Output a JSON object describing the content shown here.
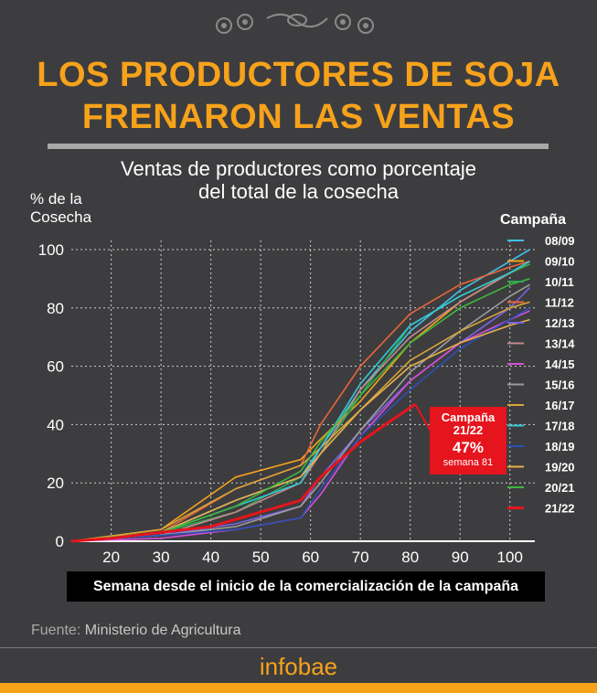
{
  "header": {
    "title_line1": "LOS PRODUCTORES DE SOJA",
    "title_line2": "FRENARON LAS VENTAS",
    "subtitle_line1": "Ventas de productores como porcentaje",
    "subtitle_line2": "del total de la cosecha"
  },
  "callout": {
    "line1": "Campaña",
    "line2": "21/22",
    "value": "47%",
    "week": "semana 81"
  },
  "source": {
    "label": "Fuente:",
    "text": "Ministerio de Agricultura"
  },
  "brand": "infobae",
  "colors": {
    "accent": "#f7a21b",
    "background": "#3d3d3f",
    "highlight": "#e5141d"
  },
  "chart_data": {
    "type": "line",
    "ylabel_line1": "% de la",
    "ylabel_line2": "Cosecha",
    "xlabel": "Semana desde el inicio de la comercialización de la campaña",
    "legend_title": "Campaña",
    "legend_position": "right",
    "xlim": [
      12,
      105
    ],
    "ylim": [
      0,
      100
    ],
    "xticks": [
      20,
      30,
      40,
      50,
      60,
      70,
      80,
      90,
      100
    ],
    "yticks": [
      0,
      20,
      40,
      60,
      80,
      100
    ],
    "grid": true,
    "series": [
      {
        "name": "08/09",
        "color": "#3fc0e6",
        "x": [
          12,
          30,
          45,
          58,
          62,
          70,
          80,
          90,
          100,
          104
        ],
        "y": [
          0,
          3,
          14,
          22,
          32,
          52,
          72,
          86,
          96,
          100
        ]
      },
      {
        "name": "09/10",
        "color": "#f7a21b",
        "x": [
          12,
          30,
          45,
          58,
          62,
          70,
          80,
          90,
          100,
          104
        ],
        "y": [
          0,
          4,
          22,
          28,
          35,
          48,
          68,
          82,
          92,
          95
        ]
      },
      {
        "name": "10/11",
        "color": "#2fa84f",
        "x": [
          12,
          30,
          45,
          58,
          62,
          70,
          80,
          90,
          100,
          104
        ],
        "y": [
          0,
          3,
          10,
          22,
          30,
          50,
          74,
          84,
          92,
          95
        ]
      },
      {
        "name": "11/12",
        "color": "#e9653a",
        "x": [
          12,
          30,
          45,
          58,
          62,
          70,
          80,
          90,
          100,
          104
        ],
        "y": [
          0,
          3,
          18,
          26,
          40,
          60,
          78,
          88,
          94,
          96
        ]
      },
      {
        "name": "12/13",
        "color": "#7b63e8",
        "x": [
          12,
          30,
          45,
          58,
          62,
          70,
          80,
          90,
          100,
          104
        ],
        "y": [
          0,
          2,
          6,
          12,
          22,
          38,
          55,
          68,
          80,
          87
        ]
      },
      {
        "name": "13/14",
        "color": "#c48a8a",
        "x": [
          12,
          30,
          45,
          58,
          62,
          70,
          80,
          90,
          100,
          104
        ],
        "y": [
          0,
          2,
          10,
          20,
          30,
          52,
          70,
          82,
          92,
          96
        ]
      },
      {
        "name": "14/15",
        "color": "#d64fd6",
        "x": [
          12,
          30,
          45,
          58,
          62,
          70,
          80,
          90,
          100,
          104
        ],
        "y": [
          0,
          1,
          4,
          8,
          16,
          36,
          55,
          68,
          76,
          79
        ]
      },
      {
        "name": "15/16",
        "color": "#9c9c9c",
        "x": [
          12,
          30,
          45,
          58,
          62,
          70,
          80,
          90,
          100,
          104
        ],
        "y": [
          0,
          2,
          5,
          12,
          20,
          38,
          58,
          72,
          84,
          88
        ]
      },
      {
        "name": "16/17",
        "color": "#d9a53a",
        "x": [
          12,
          30,
          45,
          58,
          62,
          70,
          80,
          90,
          100,
          104
        ],
        "y": [
          0,
          4,
          18,
          26,
          32,
          45,
          62,
          72,
          80,
          82
        ]
      },
      {
        "name": "17/18",
        "color": "#33c7d6",
        "x": [
          12,
          30,
          45,
          58,
          62,
          70,
          80,
          90,
          100,
          104
        ],
        "y": [
          0,
          3,
          12,
          20,
          32,
          54,
          74,
          84,
          92,
          96
        ]
      },
      {
        "name": "18/19",
        "color": "#2d4fb8",
        "x": [
          12,
          30,
          45,
          58,
          62,
          70,
          80,
          90,
          100,
          104
        ],
        "y": [
          0,
          2,
          4,
          8,
          18,
          36,
          52,
          66,
          76,
          80
        ]
      },
      {
        "name": "19/20",
        "color": "#e8b04a",
        "x": [
          12,
          30,
          45,
          58,
          62,
          70,
          80,
          90,
          100,
          104
        ],
        "y": [
          0,
          3,
          14,
          22,
          30,
          45,
          60,
          68,
          74,
          76
        ]
      },
      {
        "name": "20/21",
        "color": "#3db83d",
        "x": [
          12,
          30,
          45,
          58,
          62,
          70,
          80,
          90,
          100,
          104
        ],
        "y": [
          0,
          3,
          12,
          24,
          34,
          50,
          68,
          80,
          88,
          90
        ]
      },
      {
        "name": "21/22",
        "color": "#e5141d",
        "x": [
          12,
          20,
          30,
          40,
          50,
          58,
          62,
          70,
          75,
          81
        ],
        "y": [
          0,
          1,
          3,
          5,
          10,
          14,
          22,
          34,
          40,
          47
        ]
      }
    ]
  }
}
